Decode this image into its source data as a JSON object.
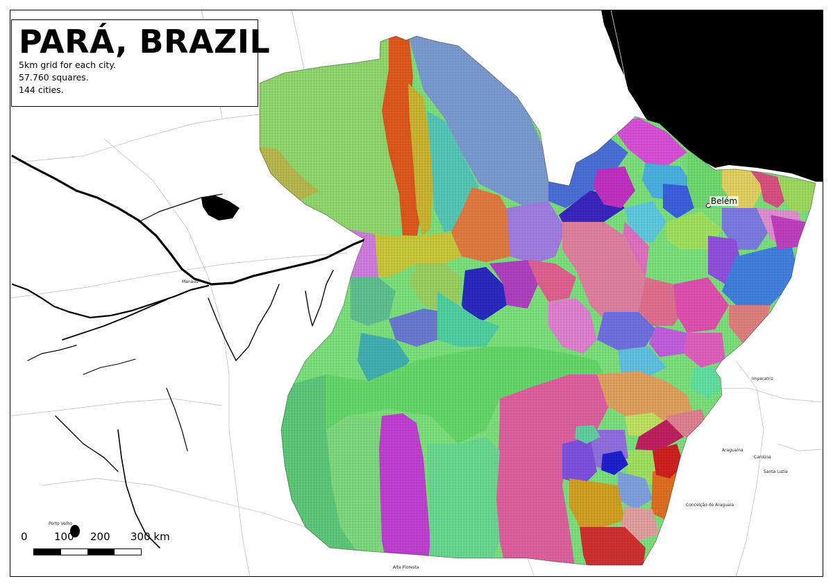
{
  "title": "PARÁ, BRAZIL",
  "info_lines": [
    "5km grid for each city.",
    "57.760 squares.",
    "144 cities."
  ],
  "scale": {
    "ticks": [
      "0",
      "100",
      "200",
      "300 km"
    ]
  },
  "city_label": "Belém",
  "places": [
    "Manaus",
    "Porto Velho",
    "Imperatriz",
    "Araguaína",
    "Conceição do Araguaia",
    "Alta Floresta",
    "Carolina",
    "Santa Luzia"
  ],
  "colors": {
    "ocean": "#000000",
    "background": "#ffffff",
    "outline": "#000000"
  }
}
